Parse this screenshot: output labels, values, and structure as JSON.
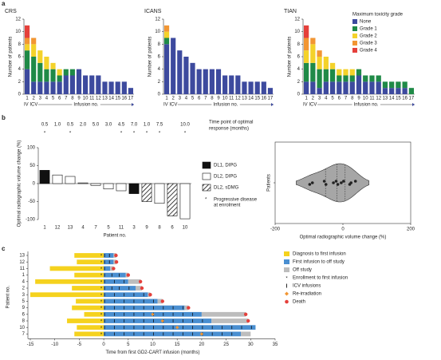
{
  "panels": [
    "a",
    "b",
    "c"
  ],
  "chart_data": [
    {
      "type": "stacked_bar",
      "title": "CRS",
      "ylabel": "Number of patients",
      "xlabel": "Infusion no.",
      "xsublabel": "IV ICV",
      "categories": [
        "1",
        "2",
        "3",
        "4",
        "5",
        "6",
        "7",
        "8",
        "9",
        "10",
        "11",
        "12",
        "13",
        "14",
        "15",
        "16",
        "17"
      ],
      "ylim": [
        0,
        12
      ],
      "yticks": [
        0,
        2,
        4,
        6,
        8,
        10,
        12
      ],
      "series": [
        {
          "name": "None",
          "color": "#3d4a9e",
          "values": [
            4,
            2,
            2,
            2,
            2,
            2,
            3,
            3,
            4,
            3,
            3,
            3,
            2,
            2,
            2,
            2,
            1
          ]
        },
        {
          "name": "Grade 1",
          "color": "#1f8a47",
          "values": [
            3,
            4,
            3,
            2,
            2,
            1,
            1,
            1,
            0,
            0,
            0,
            0,
            0,
            0,
            0,
            0,
            0
          ]
        },
        {
          "name": "Grade 2",
          "color": "#f4d22a",
          "values": [
            1,
            2,
            2,
            2,
            1,
            1,
            0,
            0,
            0,
            0,
            0,
            0,
            0,
            0,
            0,
            0,
            0
          ]
        },
        {
          "name": "Grade 3",
          "color": "#f29633",
          "values": [
            1,
            1,
            0,
            0,
            0,
            0,
            0,
            0,
            0,
            0,
            0,
            0,
            0,
            0,
            0,
            0,
            0
          ]
        },
        {
          "name": "Grade 4",
          "color": "#e5403b",
          "values": [
            2,
            0,
            0,
            0,
            0,
            0,
            0,
            0,
            0,
            0,
            0,
            0,
            0,
            0,
            0,
            0,
            0
          ]
        }
      ]
    },
    {
      "type": "stacked_bar",
      "title": "ICANS",
      "ylabel": "Number of patients",
      "xlabel": "Infusion no.",
      "xsublabel": "IV ICV",
      "categories": [
        "1",
        "2",
        "3",
        "4",
        "5",
        "6",
        "7",
        "8",
        "9",
        "10",
        "11",
        "12",
        "13",
        "14",
        "15",
        "16",
        "17"
      ],
      "ylim": [
        0,
        12
      ],
      "yticks": [
        0,
        2,
        4,
        6,
        8,
        10,
        12
      ],
      "series": [
        {
          "name": "None",
          "color": "#3d4a9e",
          "values": [
            8,
            9,
            7,
            6,
            5,
            4,
            4,
            4,
            4,
            3,
            3,
            3,
            2,
            2,
            2,
            2,
            1
          ]
        },
        {
          "name": "Grade 1",
          "color": "#1f8a47",
          "values": [
            1,
            0,
            0,
            0,
            0,
            0,
            0,
            0,
            0,
            0,
            0,
            0,
            0,
            0,
            0,
            0,
            0
          ]
        },
        {
          "name": "Grade 2",
          "color": "#f4d22a",
          "values": [
            1,
            0,
            0,
            0,
            0,
            0,
            0,
            0,
            0,
            0,
            0,
            0,
            0,
            0,
            0,
            0,
            0
          ]
        },
        {
          "name": "Grade 3",
          "color": "#f29633",
          "values": [
            1,
            0,
            0,
            0,
            0,
            0,
            0,
            0,
            0,
            0,
            0,
            0,
            0,
            0,
            0,
            0,
            0
          ]
        },
        {
          "name": "Grade 4",
          "color": "#e5403b",
          "values": [
            0,
            0,
            0,
            0,
            0,
            0,
            0,
            0,
            0,
            0,
            0,
            0,
            0,
            0,
            0,
            0,
            0
          ]
        }
      ]
    },
    {
      "type": "stacked_bar",
      "title": "TIAN",
      "ylabel": "Number of patients",
      "xlabel": "Infusion no.",
      "xsublabel": "IV ICV",
      "legend_title": "Maximum toxicity grade",
      "legend": "upper right",
      "categories": [
        "1",
        "2",
        "3",
        "4",
        "5",
        "6",
        "7",
        "8",
        "9",
        "10",
        "11",
        "12",
        "13",
        "14",
        "15",
        "16",
        "17"
      ],
      "ylim": [
        0,
        12
      ],
      "yticks": [
        0,
        2,
        4,
        6,
        8,
        10,
        12
      ],
      "series": [
        {
          "name": "None",
          "color": "#3d4a9e",
          "values": [
            2,
            2,
            1,
            2,
            2,
            2,
            2,
            2,
            3,
            2,
            2,
            2,
            1,
            1,
            1,
            1,
            0
          ]
        },
        {
          "name": "Grade 1",
          "color": "#1f8a47",
          "values": [
            3,
            3,
            3,
            2,
            2,
            1,
            1,
            1,
            1,
            1,
            1,
            1,
            1,
            1,
            1,
            1,
            1
          ]
        },
        {
          "name": "Grade 2",
          "color": "#f4d22a",
          "values": [
            2,
            3,
            2,
            2,
            1,
            1,
            1,
            1,
            0,
            0,
            0,
            0,
            0,
            0,
            0,
            0,
            0
          ]
        },
        {
          "name": "Grade 3",
          "color": "#f29633",
          "values": [
            2,
            1,
            1,
            0,
            0,
            0,
            0,
            0,
            0,
            0,
            0,
            0,
            0,
            0,
            0,
            0,
            0
          ]
        },
        {
          "name": "Grade 4",
          "color": "#e5403b",
          "values": [
            2,
            0,
            0,
            0,
            0,
            0,
            0,
            0,
            0,
            0,
            0,
            0,
            0,
            0,
            0,
            0,
            0
          ]
        }
      ]
    },
    {
      "type": "waterfall",
      "ylabel": "Optimal radiographic volume change (%)",
      "xlabel": "Patient no.",
      "categories": [
        "1",
        "12",
        "13",
        "4",
        "7",
        "5",
        "11",
        "3",
        "9",
        "8",
        "6",
        "10"
      ],
      "values": [
        37,
        24,
        20,
        2,
        -5,
        -15,
        -20,
        -28,
        -50,
        -55,
        -90,
        -98
      ],
      "group": [
        0,
        1,
        1,
        1,
        1,
        1,
        1,
        0,
        2,
        1,
        2,
        1
      ],
      "groups": [
        "DL1, DIPG",
        "DL2, DIPG",
        "DL2, sDMG"
      ],
      "ylim": [
        -100,
        100
      ],
      "yticks": [
        -100,
        -50,
        0,
        50,
        100
      ],
      "response_title": [
        "Time point of optimal",
        "response (months)"
      ],
      "response_time": [
        "0.5",
        "1.0",
        "0.5",
        "2.0",
        "5.0",
        "3.0",
        "4.5",
        "7.0",
        "1.0",
        "7.5",
        null,
        "10.0"
      ],
      "progressive": [
        true,
        false,
        true,
        false,
        false,
        false,
        true,
        true,
        true,
        true,
        false,
        true
      ],
      "progressive_marker": "*",
      "progressive_label": [
        "Progressive disease",
        "at enrolment"
      ]
    },
    {
      "type": "violin",
      "xlabel": "Optimal radiographic volume change (%)",
      "ylabel": "Patients",
      "xlim": [
        -200,
        200
      ],
      "xticks": [
        -200,
        0,
        200
      ]
    },
    {
      "type": "swimmer",
      "ylabel": "Patient no.",
      "xlabel": "Time from first GD2-CART infusion (months)",
      "xlim": [
        -15,
        35
      ],
      "xticks": [
        -15,
        -10,
        -5,
        0,
        5,
        10,
        15,
        20,
        25,
        30,
        35
      ],
      "legend": [
        "Diagnosis to first infusion",
        "First infusion to off study",
        "Off study",
        "Enrollment to first infusion",
        "ICV infusions",
        "Re-irradiation",
        "Death"
      ],
      "patients": [
        {
          "id": "13",
          "diagnosis": -6,
          "enrolment": -0.5,
          "off_study": 2,
          "end": 2.5,
          "death": 2.5,
          "infusions": [
            0,
            1
          ],
          "reirradiation": null
        },
        {
          "id": "12",
          "diagnosis": -5.5,
          "enrolment": -0.5,
          "off_study": 2,
          "end": 2.6,
          "death": 2.6,
          "infusions": [
            0,
            1
          ],
          "reirradiation": null
        },
        {
          "id": "11",
          "diagnosis": -11,
          "enrolment": -0.5,
          "off_study": 1.3,
          "end": 2,
          "death": 2,
          "infusions": [
            0
          ],
          "reirradiation": null
        },
        {
          "id": "1",
          "diagnosis": -6,
          "enrolment": -0.5,
          "off_study": 4.5,
          "end": 5,
          "death": 5,
          "infusions": [
            0,
            1.5,
            3
          ],
          "reirradiation": null
        },
        {
          "id": "4",
          "diagnosis": -14,
          "enrolment": -0.5,
          "off_study": 5,
          "end": 7.5,
          "death": 7.5,
          "infusions": [
            0,
            2,
            4
          ],
          "reirradiation": null
        },
        {
          "id": "2",
          "diagnosis": -6.5,
          "enrolment": -0.5,
          "off_study": 6.5,
          "end": 7.8,
          "death": 7.8,
          "infusions": [
            0,
            1.5,
            3,
            5
          ],
          "reirradiation": null
        },
        {
          "id": "3",
          "diagnosis": -15,
          "enrolment": -0.5,
          "off_study": 9,
          "end": 9.5,
          "death": 9.5,
          "infusions": [
            0,
            2,
            4,
            6,
            8
          ],
          "reirradiation": null
        },
        {
          "id": "5",
          "diagnosis": -5.7,
          "enrolment": -0.5,
          "off_study": 11,
          "end": 12,
          "death": 12,
          "infusions": [
            0,
            2,
            4,
            6,
            8,
            10
          ],
          "reirradiation": null
        },
        {
          "id": "9",
          "diagnosis": -6.5,
          "enrolment": -0.5,
          "off_study": 16.5,
          "end": 17.3,
          "death": 17.3,
          "infusions": [
            0,
            2,
            4,
            6,
            8,
            10,
            12,
            14,
            16
          ],
          "reirradiation": null
        },
        {
          "id": "6",
          "diagnosis": -4,
          "enrolment": -0.5,
          "off_study": 20,
          "end": 29,
          "death": 29,
          "infusions": [
            0,
            2,
            4,
            6,
            8,
            10,
            12,
            14,
            16,
            18
          ],
          "reirradiation": 10
        },
        {
          "id": "8",
          "diagnosis": -7.5,
          "enrolment": -0.5,
          "off_study": 22,
          "end": 29.5,
          "death": 29.5,
          "infusions": [
            0,
            2,
            4,
            6,
            8,
            10,
            12,
            14,
            16,
            18,
            20
          ],
          "reirradiation": 12
        },
        {
          "id": "10",
          "diagnosis": -5.5,
          "enrolment": -0.5,
          "off_study": 31,
          "end": 31,
          "death": null,
          "infusions": [
            0,
            2,
            4,
            6,
            8,
            10,
            12,
            14,
            16,
            18,
            20,
            22,
            24,
            26,
            28,
            30
          ],
          "reirradiation": 15
        },
        {
          "id": "7",
          "diagnosis": -6,
          "enrolment": -0.5,
          "off_study": 28,
          "end": 30,
          "death": null,
          "infusions": [
            0,
            2,
            4,
            6,
            8,
            10,
            12,
            14,
            16,
            18,
            20,
            22,
            24,
            26
          ],
          "reirradiation": 20
        }
      ]
    }
  ]
}
